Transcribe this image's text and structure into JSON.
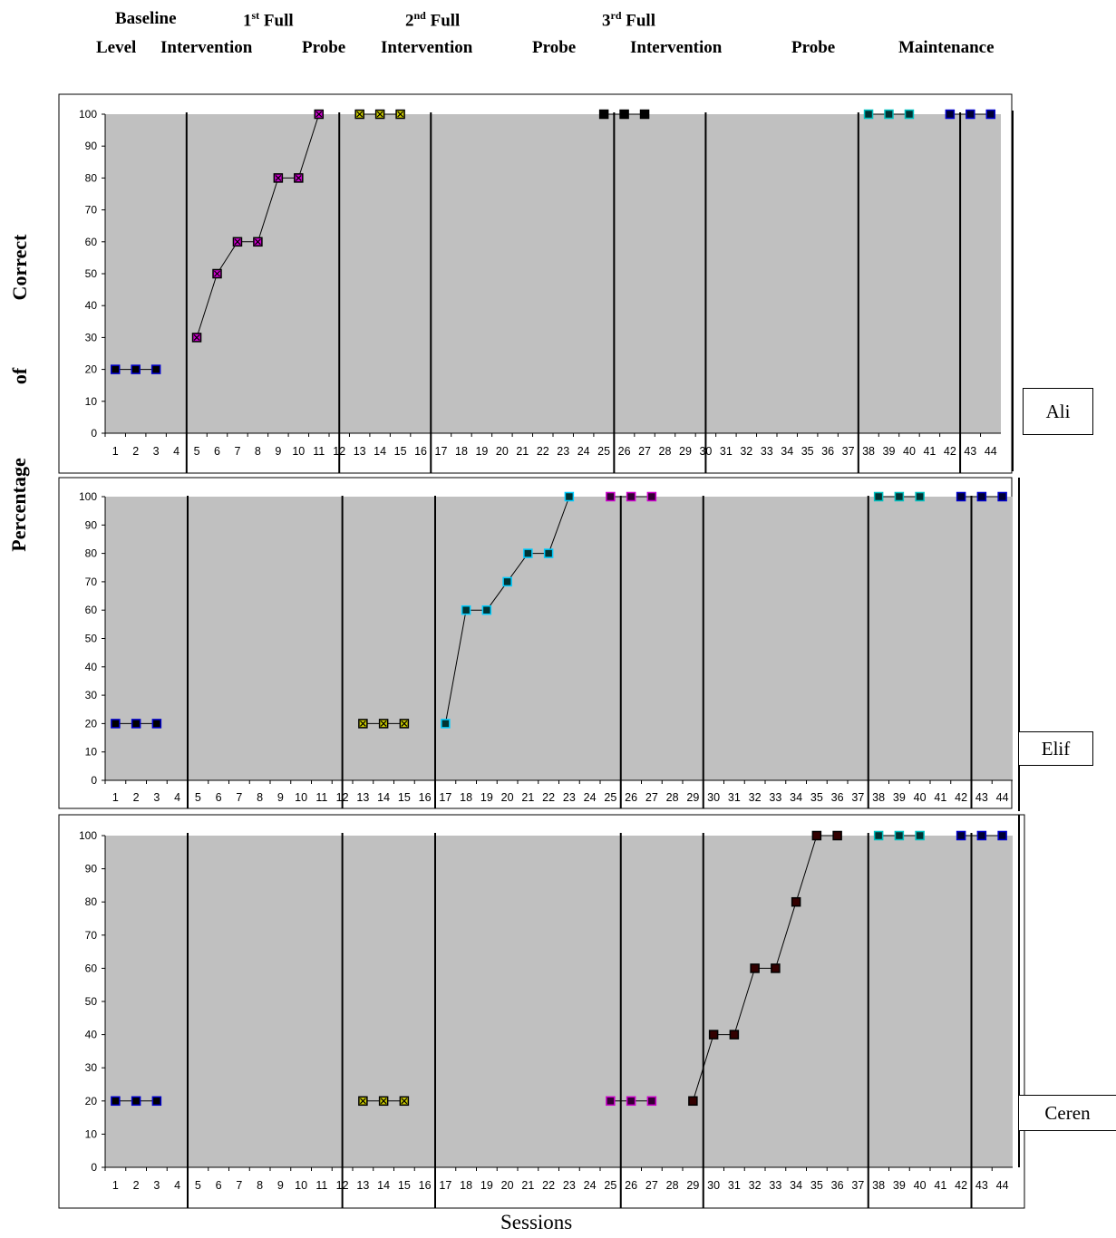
{
  "header": {
    "baseline": "Baseline",
    "level": "Level",
    "intervention1_prefix": "1",
    "intervention1_sup": "st",
    "intervention1_suffix": "Full",
    "intervention1_label": "Intervention",
    "probe1": "Probe",
    "intervention2_prefix": "2",
    "intervention2_sup": "nd",
    "intervention2_suffix": "Full",
    "intervention2_label": "Intervention",
    "probe2": "Probe",
    "intervention3_prefix": "3",
    "intervention3_sup": "rd",
    "intervention3_suffix": "Full",
    "intervention3_label": "Intervention",
    "probe3": "Probe",
    "maintenance": "Maintenance"
  },
  "y_axis_title": {
    "word1": "Percentage",
    "word2": "of",
    "word3": "Correct"
  },
  "x_axis_title": "Sessions",
  "participants": [
    "Ali",
    "Elif",
    "Ceren"
  ],
  "colors": {
    "plot_background": "#c0c0c0",
    "marker_black": "#000000",
    "marker_magenta": "#cc00cc",
    "marker_yellow": "#cccc00",
    "marker_cyan": "#00ccff",
    "marker_purple": "#cc00cc",
    "marker_teal": "#00c0c0",
    "marker_blue": "#0000cc",
    "marker_maroon": "#660000"
  },
  "chart_data": [
    {
      "type": "line",
      "participant": "Ali",
      "ylim": [
        0,
        100
      ],
      "yticks": [
        0,
        10,
        20,
        30,
        40,
        50,
        60,
        70,
        80,
        90,
        100
      ],
      "xticks": [
        "1",
        "2",
        "3",
        "4",
        "5",
        "6",
        "7",
        "8",
        "9",
        "10",
        "11",
        "12",
        "13",
        "14",
        "15",
        "16",
        "17",
        "18",
        "19",
        "20",
        "21",
        "22",
        "23",
        "24",
        "25",
        "26",
        "27",
        "28",
        "29",
        "30",
        "31",
        "32",
        "33",
        "34",
        "35",
        "36",
        "37",
        "38",
        "39",
        "40",
        "41",
        "42",
        "43",
        "44"
      ],
      "phase_lines_after_session": [
        4,
        11.5,
        16,
        25,
        29.5,
        37,
        42
      ],
      "series": [
        {
          "x": [
            1,
            2,
            3
          ],
          "y": [
            20,
            20,
            20
          ],
          "color": "#000000",
          "border": "#0000cc"
        },
        {
          "x": [
            5,
            6,
            7,
            8,
            9,
            10,
            11
          ],
          "y": [
            30,
            50,
            60,
            60,
            80,
            80,
            100
          ],
          "color": "#cc00cc",
          "border": "#000000",
          "cross": true
        },
        {
          "x": [
            13,
            14,
            15
          ],
          "y": [
            100,
            100,
            100
          ],
          "color": "#cccc00",
          "border": "#000000",
          "cross": true
        },
        {
          "x": [
            25,
            26,
            27
          ],
          "y": [
            100,
            100,
            100
          ],
          "color": "#000000",
          "border": "#000000"
        },
        {
          "x": [
            38,
            39,
            40
          ],
          "y": [
            100,
            100,
            100
          ],
          "color": "#003333",
          "border": "#00c0c0"
        },
        {
          "x": [
            42,
            43,
            44
          ],
          "y": [
            100,
            100,
            100
          ],
          "color": "#000033",
          "border": "#0000cc"
        }
      ]
    },
    {
      "type": "line",
      "participant": "Elif",
      "ylim": [
        0,
        100
      ],
      "yticks": [
        0,
        10,
        20,
        30,
        40,
        50,
        60,
        70,
        80,
        90,
        100
      ],
      "xticks": [
        "1",
        "2",
        "3",
        "4",
        "5",
        "6",
        "7",
        "8",
        "9",
        "10",
        "11",
        "12",
        "13",
        "14",
        "15",
        "16",
        "17",
        "18",
        "19",
        "20",
        "21",
        "22",
        "23",
        "24",
        "25",
        "26",
        "27",
        "28",
        "29",
        "30",
        "31",
        "32",
        "33",
        "34",
        "35",
        "36",
        "37",
        "38",
        "39",
        "40",
        "41",
        "42",
        "43",
        "44"
      ],
      "phase_lines_after_session": [
        4,
        11.5,
        16,
        25,
        29,
        37,
        42
      ],
      "series": [
        {
          "x": [
            1,
            2,
            3
          ],
          "y": [
            20,
            20,
            20
          ],
          "color": "#000000",
          "border": "#0000cc"
        },
        {
          "x": [
            13,
            14,
            15
          ],
          "y": [
            20,
            20,
            20
          ],
          "color": "#cccc00",
          "border": "#000000",
          "cross": true
        },
        {
          "x": [
            17,
            18,
            19,
            20,
            21,
            22,
            23
          ],
          "y": [
            20,
            60,
            60,
            70,
            80,
            80,
            100
          ],
          "color": "#003333",
          "border": "#00ccff"
        },
        {
          "x": [
            25,
            26,
            27
          ],
          "y": [
            100,
            100,
            100
          ],
          "color": "#330033",
          "border": "#cc00cc"
        },
        {
          "x": [
            38,
            39,
            40
          ],
          "y": [
            100,
            100,
            100
          ],
          "color": "#003333",
          "border": "#00c0c0"
        },
        {
          "x": [
            42,
            43,
            44
          ],
          "y": [
            100,
            100,
            100
          ],
          "color": "#000033",
          "border": "#0000cc"
        }
      ]
    },
    {
      "type": "line",
      "participant": "Ceren",
      "ylim": [
        0,
        100
      ],
      "yticks": [
        0,
        10,
        20,
        30,
        40,
        50,
        60,
        70,
        80,
        90,
        100
      ],
      "xticks": [
        "1",
        "2",
        "3",
        "4",
        "5",
        "6",
        "7",
        "8",
        "9",
        "10",
        "11",
        "12",
        "13",
        "14",
        "15",
        "16",
        "17",
        "18",
        "19",
        "20",
        "21",
        "22",
        "23",
        "24",
        "25",
        "26",
        "27",
        "28",
        "29",
        "30",
        "31",
        "32",
        "33",
        "34",
        "35",
        "36",
        "37",
        "38",
        "39",
        "40",
        "41",
        "42",
        "43",
        "44"
      ],
      "phase_lines_after_session": [
        4,
        11.5,
        16,
        25,
        29,
        37,
        42
      ],
      "series": [
        {
          "x": [
            1,
            2,
            3
          ],
          "y": [
            20,
            20,
            20
          ],
          "color": "#000000",
          "border": "#0000cc"
        },
        {
          "x": [
            13,
            14,
            15
          ],
          "y": [
            20,
            20,
            20
          ],
          "color": "#cccc00",
          "border": "#000000",
          "cross": true
        },
        {
          "x": [
            25,
            26,
            27
          ],
          "y": [
            20,
            20,
            20
          ],
          "color": "#330033",
          "border": "#cc00cc"
        },
        {
          "x": [
            29,
            30,
            31,
            32,
            33,
            34,
            35,
            36
          ],
          "y": [
            20,
            40,
            40,
            60,
            60,
            80,
            100,
            100
          ],
          "color": "#330000",
          "border": "#000000"
        },
        {
          "x": [
            38,
            39,
            40
          ],
          "y": [
            100,
            100,
            100
          ],
          "color": "#003333",
          "border": "#00c0c0"
        },
        {
          "x": [
            42,
            43,
            44
          ],
          "y": [
            100,
            100,
            100
          ],
          "color": "#000033",
          "border": "#0000cc"
        }
      ]
    }
  ]
}
